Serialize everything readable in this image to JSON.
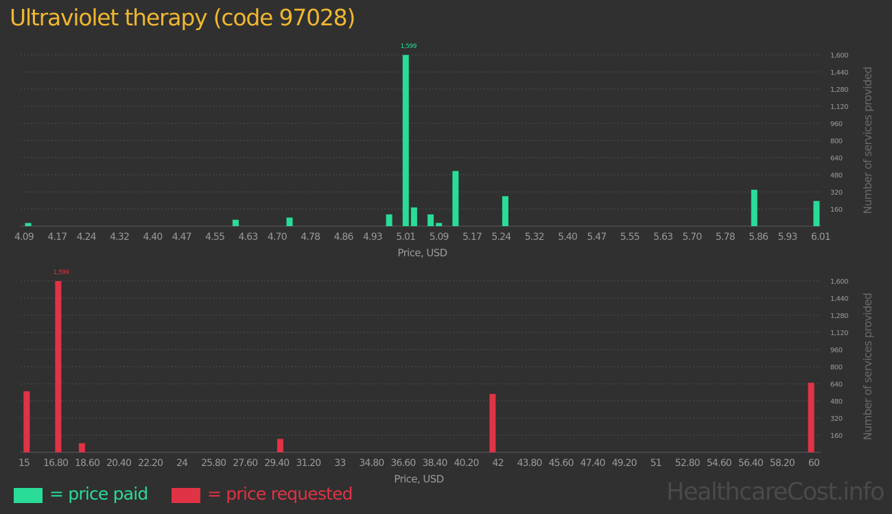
{
  "page": {
    "title": "Ultraviolet therapy (code 97028)",
    "watermark": "HealthcareCost.info"
  },
  "legend": {
    "paid": {
      "label": "= price paid",
      "color": "#29dc98"
    },
    "requested": {
      "label": "= price requested",
      "color": "#e03345"
    }
  },
  "chart_data": [
    {
      "type": "bar",
      "xlabel": "Price, USD",
      "ylabel": "Number of services provided",
      "color": "#29dc98",
      "xlim": [
        4.09,
        6.01
      ],
      "ylim": [
        0,
        1600
      ],
      "yticks": [
        160,
        320,
        480,
        640,
        800,
        960,
        1120,
        1280,
        1440,
        1600
      ],
      "ytick_labels": [
        "160",
        "320",
        "480",
        "640",
        "800",
        "960",
        "1,120",
        "1,280",
        "1,440",
        "1,600"
      ],
      "xticks": [
        4.09,
        4.17,
        4.24,
        4.32,
        4.4,
        4.47,
        4.55,
        4.63,
        4.7,
        4.78,
        4.86,
        4.93,
        5.01,
        5.09,
        5.17,
        5.24,
        5.32,
        5.4,
        5.47,
        5.55,
        5.63,
        5.7,
        5.78,
        5.86,
        5.93,
        6.01
      ],
      "xtick_labels": [
        "4.09",
        "4.17",
        "4.24",
        "4.32",
        "4.40",
        "4.47",
        "4.55",
        "4.63",
        "4.70",
        "4.78",
        "4.86",
        "4.93",
        "5.01",
        "5.09",
        "5.17",
        "5.24",
        "5.32",
        "5.40",
        "5.47",
        "5.55",
        "5.63",
        "5.70",
        "5.78",
        "5.86",
        "5.93",
        "6.01"
      ],
      "x": [
        4.1,
        4.6,
        4.73,
        4.97,
        5.01,
        5.03,
        5.07,
        5.09,
        5.13,
        5.25,
        5.85,
        6.0
      ],
      "values": [
        30,
        60,
        80,
        110,
        1599,
        175,
        110,
        30,
        515,
        280,
        340,
        235
      ],
      "peak_label": "1,599",
      "grid": true
    },
    {
      "type": "bar",
      "xlabel": "Price, USD",
      "ylabel": "Number of services provided",
      "color": "#e03345",
      "xlim": [
        15,
        60
      ],
      "ylim": [
        0,
        1600
      ],
      "yticks": [
        160,
        320,
        480,
        640,
        800,
        960,
        1120,
        1280,
        1440,
        1600
      ],
      "ytick_labels": [
        "160",
        "320",
        "480",
        "640",
        "800",
        "960",
        "1,120",
        "1,280",
        "1,440",
        "1,600"
      ],
      "xticks": [
        15,
        16.8,
        18.6,
        20.4,
        22.2,
        24,
        25.8,
        27.6,
        29.4,
        31.2,
        33,
        34.8,
        36.6,
        38.4,
        40.2,
        42,
        43.8,
        45.6,
        47.4,
        49.2,
        51,
        52.8,
        54.6,
        56.4,
        58.2,
        60
      ],
      "xtick_labels": [
        "15",
        "16.80",
        "18.60",
        "20.40",
        "22.20",
        "24",
        "25.80",
        "27.60",
        "29.40",
        "31.20",
        "33",
        "34.80",
        "36.60",
        "38.40",
        "40.20",
        "42",
        "43.80",
        "45.60",
        "47.40",
        "49.20",
        "51",
        "52.80",
        "54.60",
        "56.40",
        "58.20",
        "60"
      ],
      "x": [
        15.15,
        16.95,
        18.3,
        29.6,
        41.7,
        59.85
      ],
      "values": [
        570,
        1599,
        85,
        125,
        545,
        650
      ],
      "peak_label": "1,599",
      "grid": true
    }
  ]
}
